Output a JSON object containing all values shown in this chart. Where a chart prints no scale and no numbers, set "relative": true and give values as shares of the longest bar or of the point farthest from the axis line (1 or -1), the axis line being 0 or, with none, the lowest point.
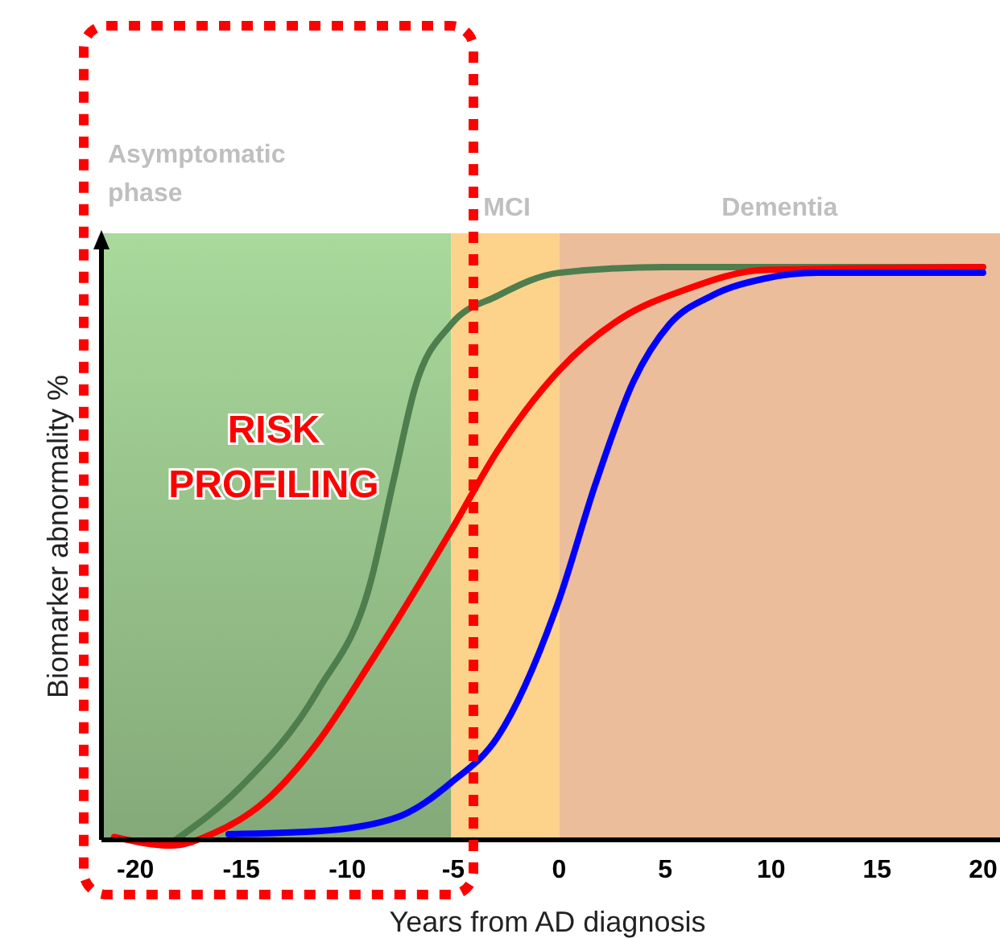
{
  "chart_data": {
    "type": "line",
    "relative": true,
    "xlabel": "Years from AD diagnosis",
    "ylabel": "Biomarker abnormality %",
    "xlim": [
      -21.6,
      20.8
    ],
    "xticks": [
      -20,
      -15,
      -10,
      -5,
      0,
      5,
      10,
      15,
      20
    ],
    "x": [
      -18.1,
      -15.1,
      -11.4,
      -8.9,
      -7.8,
      -6.8,
      -5.1,
      -2.9,
      0,
      5,
      10,
      20
    ],
    "series": [
      {
        "color": "#4e7d4e",
        "values": [
          0,
          0.09,
          0.26,
          0.45,
          0.63,
          0.79,
          0.9,
          0.95,
          0.99,
          1,
          1,
          1
        ]
      },
      {
        "color": "#ff0000",
        "x": [
          -21,
          -18.3,
          -16.4,
          -13.8,
          -11.4,
          -8.9,
          -5.1,
          -2.9,
          0,
          2.9,
          5.9,
          9.7,
          20
        ],
        "values": [
          0.005,
          -0.01,
          0.01,
          0.07,
          0.17,
          0.31,
          0.54,
          0.68,
          0.82,
          0.91,
          0.96,
          0.995,
          1
        ]
      },
      {
        "color": "#0000ff",
        "x": [
          -15.6,
          -11.4,
          -7.6,
          -5.1,
          -2.9,
          0,
          1.7,
          3.5,
          5.2,
          7.2,
          9.7,
          12.2,
          20
        ],
        "values": [
          0.01,
          0.015,
          0.04,
          0.1,
          0.18,
          0.42,
          0.62,
          0.8,
          0.9,
          0.95,
          0.98,
          0.99,
          0.99
        ]
      }
    ],
    "bands": [
      {
        "axis": "x",
        "from": -21.6,
        "to": -5.1,
        "label": "Asymptomatic phase",
        "color": "#a9d99b"
      },
      {
        "axis": "x",
        "from": -5.1,
        "to": 0,
        "label": "MCI",
        "color": "#fdd28a"
      },
      {
        "axis": "x",
        "from": 0,
        "to": 20.8,
        "label": "Dementia",
        "color": "#ebbd9a"
      }
    ],
    "annotations": [
      "RISK PROFILING"
    ],
    "grid": false,
    "marker": "none",
    "line_style": "solid"
  }
}
